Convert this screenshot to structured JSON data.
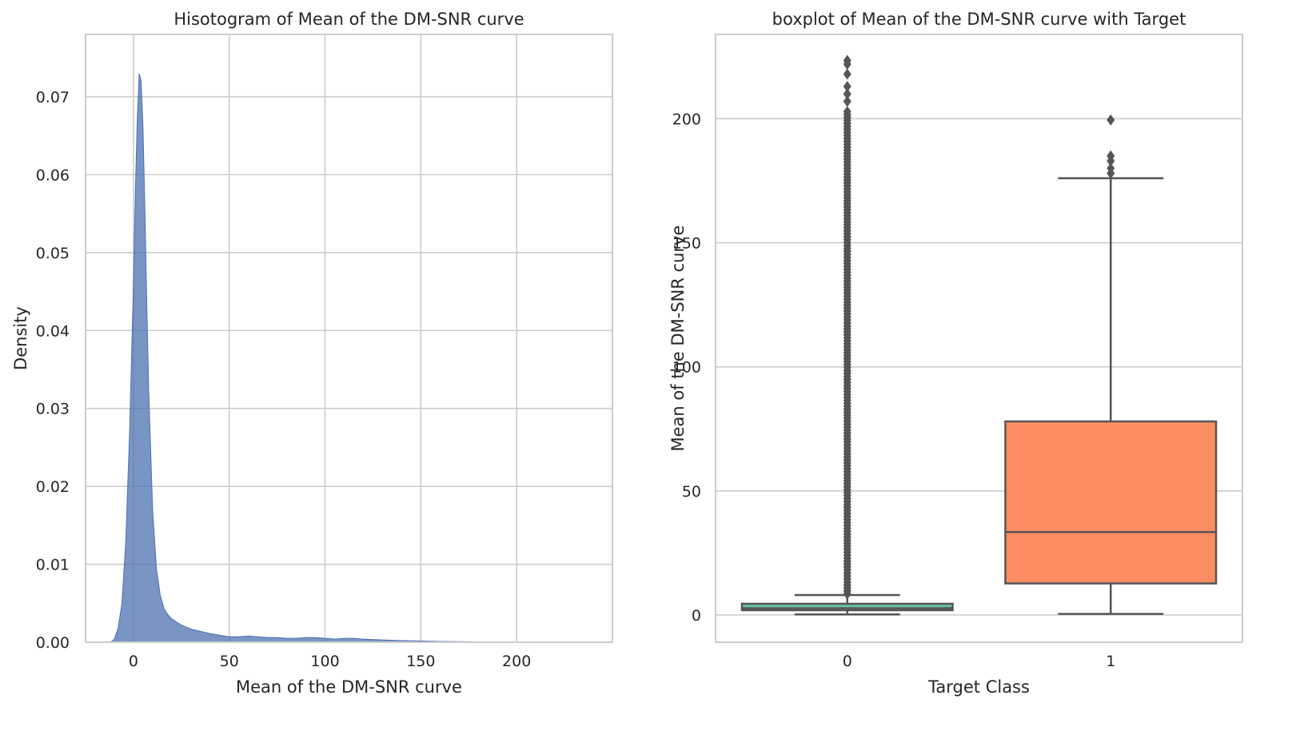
{
  "chart_data": [
    {
      "type": "area",
      "title": "Hisotogram of Mean of the DM-SNR curve",
      "xlabel": "Mean of the DM-SNR curve",
      "ylabel": "Density",
      "xlim": [
        -25,
        250
      ],
      "ylim": [
        0,
        0.078
      ],
      "xticks": [
        0,
        50,
        100,
        150,
        200
      ],
      "xtick_labels": [
        "0",
        "50",
        "100",
        "150",
        "200"
      ],
      "yticks": [
        0,
        0.01,
        0.02,
        0.03,
        0.04,
        0.05,
        0.06,
        0.07
      ],
      "ytick_labels": [
        "0.00",
        "0.01",
        "0.02",
        "0.03",
        "0.04",
        "0.05",
        "0.06",
        "0.07"
      ],
      "grid": true,
      "color": "#4c72b0",
      "series": [
        {
          "x": [
            -12,
            -10,
            -8,
            -6,
            -4,
            -2,
            0,
            1,
            2,
            3,
            4,
            5,
            6,
            7,
            8,
            10,
            12,
            14,
            16,
            18,
            20,
            25,
            30,
            35,
            40,
            45,
            50,
            55,
            60,
            65,
            70,
            75,
            80,
            85,
            90,
            95,
            100,
            105,
            110,
            115,
            120,
            130,
            140,
            150,
            160,
            170,
            180,
            190,
            200,
            210,
            220,
            230,
            235
          ],
          "y": [
            0,
            0.0004,
            0.0018,
            0.005,
            0.013,
            0.027,
            0.046,
            0.058,
            0.067,
            0.073,
            0.072,
            0.066,
            0.055,
            0.043,
            0.032,
            0.017,
            0.0095,
            0.006,
            0.0043,
            0.0035,
            0.003,
            0.0022,
            0.0017,
            0.0014,
            0.0011,
            0.0009,
            0.0007,
            0.0007,
            0.0008,
            0.0007,
            0.0006,
            0.0006,
            0.0005,
            0.0005,
            0.0006,
            0.0006,
            0.0005,
            0.0004,
            0.0005,
            0.0005,
            0.0004,
            0.0003,
            0.0002,
            0.00015,
            0.0001,
            8e-05,
            5e-05,
            4e-05,
            3e-05,
            2e-05,
            1e-05,
            1e-05,
            0
          ]
        }
      ]
    },
    {
      "type": "box",
      "title": "boxplot of Mean of the DM-SNR curve with Target",
      "xlabel": "Target Class",
      "ylabel": "Mean of the DM-SNR curve",
      "ylim": [
        -11,
        234
      ],
      "categories": [
        "0",
        "1"
      ],
      "yticks": [
        0,
        50,
        100,
        150,
        200
      ],
      "ytick_labels": [
        "0",
        "50",
        "100",
        "150",
        "200"
      ],
      "grid": true,
      "boxes": [
        {
          "category": "0",
          "color": "#66c2a5",
          "whisker_low": 0.2,
          "q1": 1.9,
          "median": 2.7,
          "q3": 4.5,
          "whisker_high": 8.0,
          "outlier_range": [
            8.5,
            204
          ],
          "outliers_extra": [
            207,
            210,
            213,
            218,
            222,
            223.5
          ]
        },
        {
          "category": "1",
          "color": "#fc8d62",
          "whisker_low": 0.4,
          "q1": 12.7,
          "median": 33.4,
          "q3": 78.0,
          "whisker_high": 176,
          "outliers": [
            178,
            180,
            183,
            185,
            199.5
          ]
        }
      ]
    }
  ]
}
